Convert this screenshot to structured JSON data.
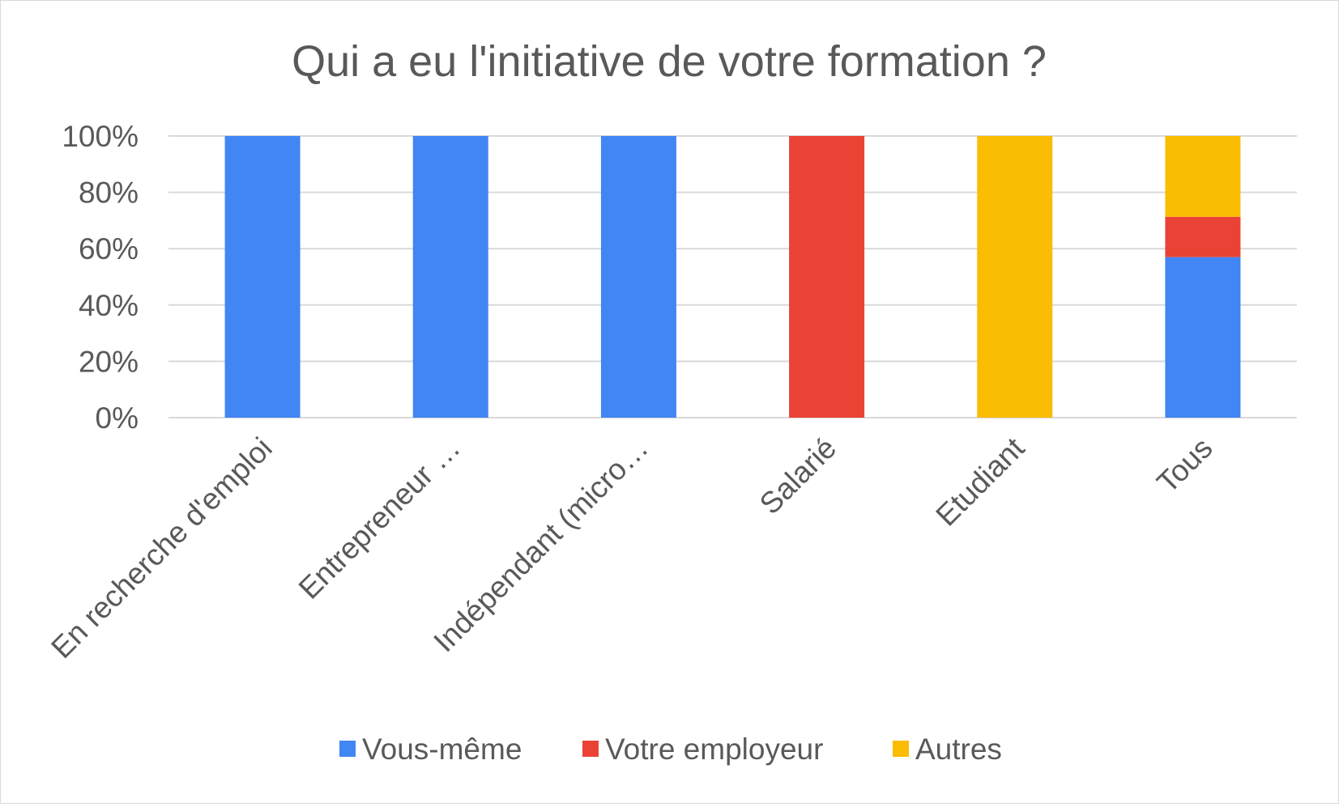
{
  "chart_data": {
    "type": "bar",
    "stacked": true,
    "percent": true,
    "title": "Qui a eu l'initiative de votre formation ?",
    "categories": [
      "En recherche d'emploi",
      "Entrepreneur …",
      "Indépendant (micro…",
      "Salarié",
      "Etudiant",
      "Tous"
    ],
    "series": [
      {
        "name": "Vous-même",
        "color": "#4285F4",
        "values": [
          1,
          1,
          1,
          0,
          0,
          0.57
        ]
      },
      {
        "name": "Votre employeur",
        "color": "#EA4335",
        "values": [
          0,
          0,
          0,
          1,
          0,
          0.143
        ]
      },
      {
        "name": "Autres",
        "color": "#FBBC04",
        "values": [
          0,
          0,
          0,
          0,
          1,
          0.287
        ]
      }
    ],
    "ylim": [
      0,
      1
    ],
    "yticks": [
      "0%",
      "20%",
      "40%",
      "60%",
      "80%",
      "100%"
    ],
    "grid": true,
    "legend": "bottom",
    "colors": {
      "text": "#595959",
      "grid": "#d9d9d9",
      "axis": "#d9d9d9"
    }
  }
}
